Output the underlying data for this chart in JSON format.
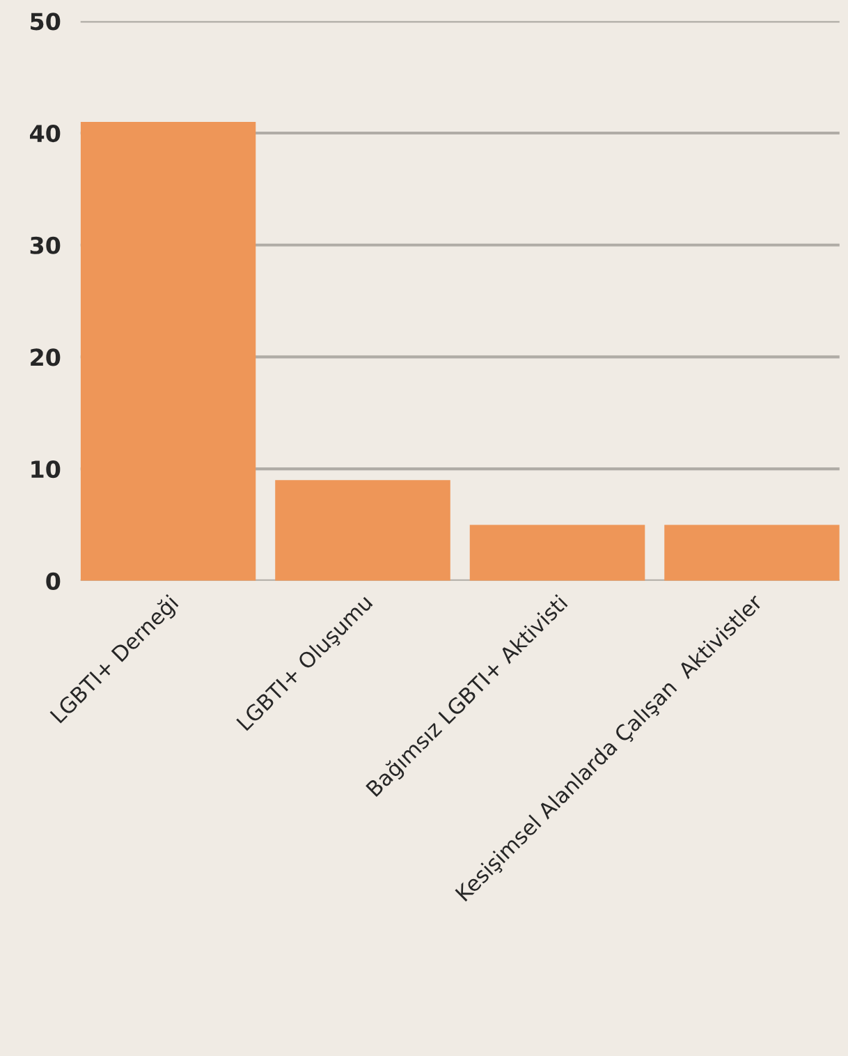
{
  "chart_data": {
    "type": "bar",
    "categories": [
      "LGBTI+ Derneği",
      "LGBTI+ Oluşumu",
      "Bağımsız LGBTI+ Aktivisti",
      "Kesişimsel Alanlarda Çalışan  Aktivistler"
    ],
    "values": [
      41,
      9,
      5,
      5
    ],
    "color": "#ee9658",
    "ylim": [
      0,
      50
    ],
    "yticks": [
      0,
      10,
      20,
      30,
      40,
      50
    ],
    "grid": "y",
    "legend": false
  }
}
